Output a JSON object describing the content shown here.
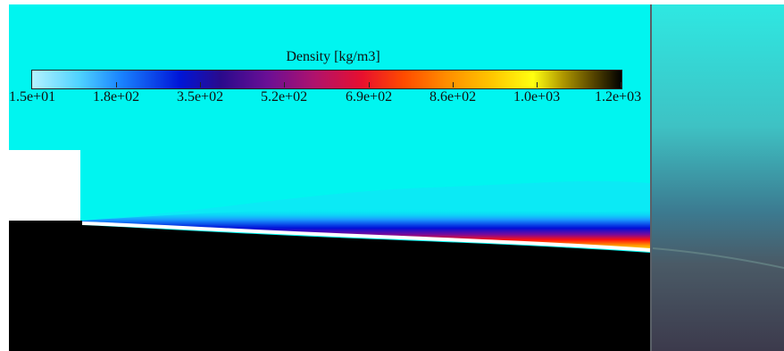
{
  "figure": {
    "colorbar_title": "Density [kg/m3]",
    "colorbar_ticks": [
      "1.5e+01",
      "1.8e+02",
      "3.5e+02",
      "5.2e+02",
      "6.9e+02",
      "8.6e+02",
      "1.0e+03",
      "1.2e+03"
    ],
    "background_color": "#00f5f0"
  }
}
